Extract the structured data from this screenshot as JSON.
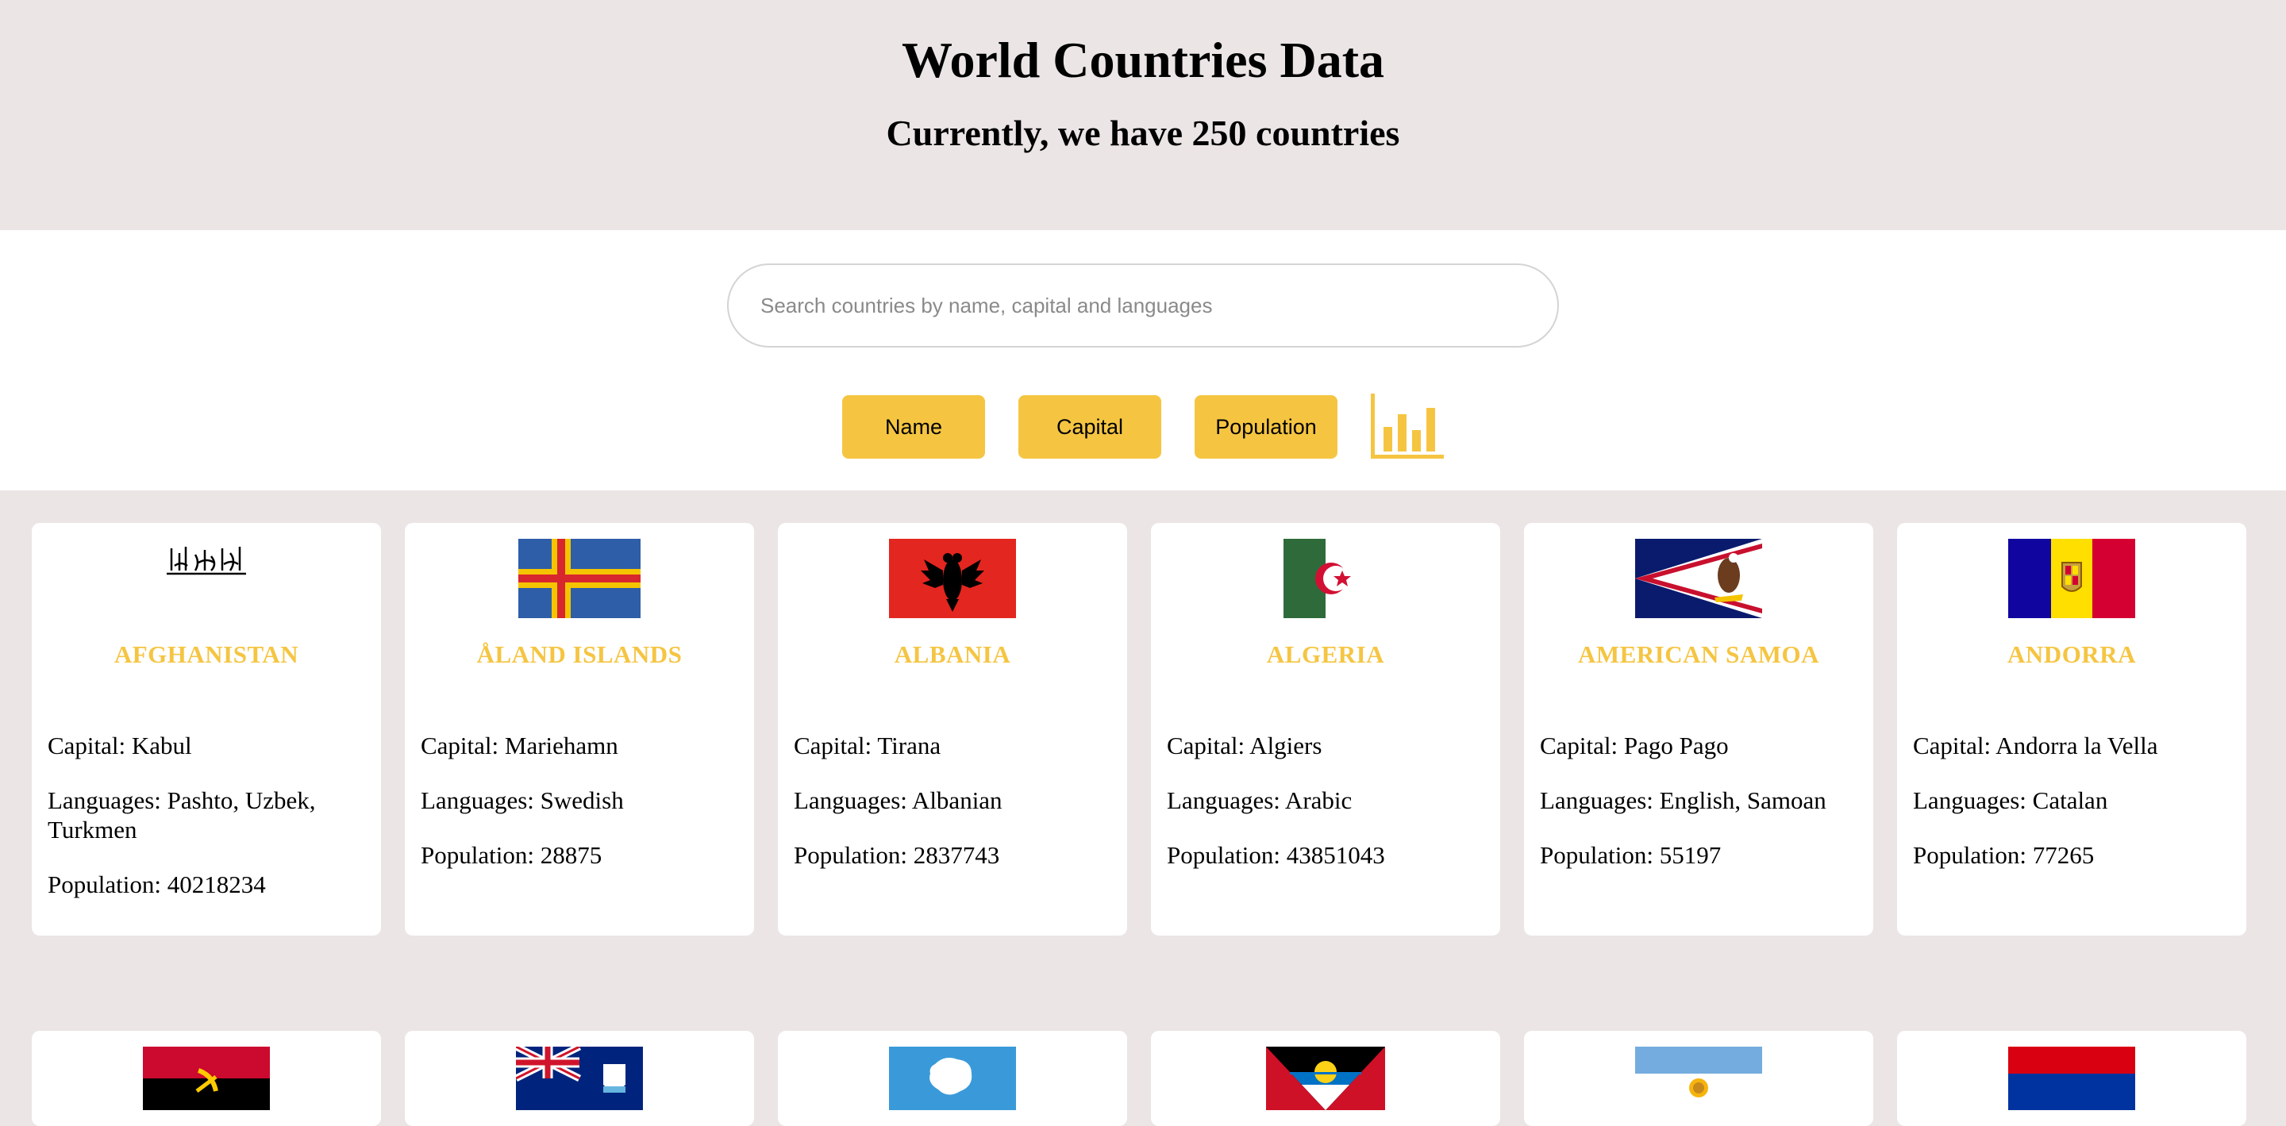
{
  "header": {
    "title": "World Countries Data",
    "subtitle": "Currently, we have 250 countries"
  },
  "search": {
    "placeholder": "Search countries by name, capital and languages",
    "value": ""
  },
  "sort_buttons": {
    "name": "Name",
    "capital": "Capital",
    "population": "Population"
  },
  "chart_button_icon": "bar-chart-icon",
  "accent_color": "#f5c542",
  "countries": [
    {
      "name": "AFGHANISTAN",
      "capital": "Capital: Kabul",
      "languages": "Languages: Pashto, Uzbek, Turkmen",
      "population": "Population: 40218234",
      "flag": "afghanistan-flag"
    },
    {
      "name": "ÅLAND ISLANDS",
      "capital": "Capital: Mariehamn",
      "languages": "Languages: Swedish",
      "population": "Population: 28875",
      "flag": "aland-islands-flag"
    },
    {
      "name": "ALBANIA",
      "capital": "Capital: Tirana",
      "languages": "Languages: Albanian",
      "population": "Population: 2837743",
      "flag": "albania-flag"
    },
    {
      "name": "ALGERIA",
      "capital": "Capital: Algiers",
      "languages": "Languages: Arabic",
      "population": "Population: 43851043",
      "flag": "algeria-flag"
    },
    {
      "name": "AMERICAN SAMOA",
      "capital": "Capital: Pago Pago",
      "languages": "Languages: English, Samoan",
      "population": "Population: 55197",
      "flag": "american-samoa-flag"
    },
    {
      "name": "ANDORRA",
      "capital": "Capital: Andorra la Vella",
      "languages": "Languages: Catalan",
      "population": "Population: 77265",
      "flag": "andorra-flag"
    }
  ],
  "next_row_flags": [
    "angola-flag",
    "anguilla-flag",
    "antarctica-flag",
    "antigua-and-barbuda-flag",
    "argentina-flag",
    "armenia-flag"
  ]
}
